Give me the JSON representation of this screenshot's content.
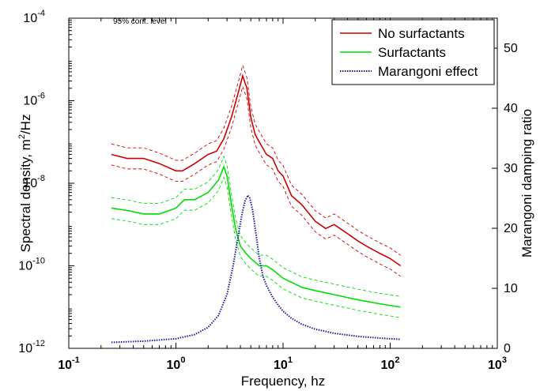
{
  "chart_data": {
    "type": "line",
    "title": "",
    "annotation": "95% conf. level",
    "xlabel": "Frequency, hz",
    "ylabel_left": "Spectral density, m",
    "ylabel_left_sup": "2",
    "ylabel_left_tail": "/Hz",
    "ylabel_right": "Marangoni damping ratio",
    "xscale": "log",
    "yscale_left": "log",
    "xlim": [
      0.1,
      1000
    ],
    "ylim_left": [
      1e-12,
      0.0001
    ],
    "ylim_right": [
      0,
      55
    ],
    "x_ticks": [
      {
        "value": 0.1,
        "base": "10",
        "exp": "-1"
      },
      {
        "value": 1,
        "base": "10",
        "exp": "0"
      },
      {
        "value": 10,
        "base": "10",
        "exp": "1"
      },
      {
        "value": 100,
        "base": "10",
        "exp": "2"
      },
      {
        "value": 1000,
        "base": "10",
        "exp": "3"
      }
    ],
    "y_left_ticks": [
      {
        "value": 1e-12,
        "base": "10",
        "exp": "-12"
      },
      {
        "value": 1e-10,
        "base": "10",
        "exp": "-10"
      },
      {
        "value": 1e-08,
        "base": "10",
        "exp": "-8"
      },
      {
        "value": 1e-06,
        "base": "10",
        "exp": "-6"
      },
      {
        "value": 0.0001,
        "base": "10",
        "exp": "-4"
      }
    ],
    "y_right_ticks": [
      "0",
      "10",
      "20",
      "30",
      "40",
      "50"
    ],
    "legend_position": "top-right",
    "series": [
      {
        "name": "No surfactants",
        "axis": "left",
        "color": "#cc0000",
        "style": "solid",
        "has_ci": true,
        "x": [
          0.25,
          0.35,
          0.5,
          0.7,
          1.0,
          1.15,
          1.5,
          2.0,
          2.4,
          2.8,
          3.3,
          3.8,
          4.2,
          4.6,
          5.0,
          5.5,
          6.0,
          7.0,
          8.0,
          9.0,
          10,
          12,
          15,
          20,
          25,
          30,
          40,
          50,
          60,
          80,
          100,
          125
        ],
        "y": [
          5e-08,
          4e-08,
          4e-08,
          3e-08,
          2e-08,
          2e-08,
          3e-08,
          5e-08,
          6e-08,
          1.2e-07,
          4e-07,
          1.5e-06,
          4e-06,
          2e-06,
          4e-07,
          1.5e-07,
          1e-07,
          5e-08,
          4e-08,
          2e-08,
          1.5e-08,
          5e-09,
          3e-09,
          1.2e-09,
          8e-10,
          1e-09,
          6e-10,
          4e-10,
          3e-10,
          2e-10,
          1.5e-10,
          1e-10
        ],
        "ci_factor": 1.8
      },
      {
        "name": "Surfactants",
        "axis": "left",
        "color": "#00dd00",
        "style": "solid",
        "has_ci": true,
        "x": [
          0.25,
          0.35,
          0.5,
          0.7,
          1.0,
          1.2,
          1.5,
          2.0,
          2.5,
          2.8,
          3.0,
          3.3,
          3.6,
          4.0,
          4.5,
          5.0,
          6.0,
          7.0,
          8.0,
          10,
          15,
          20,
          30,
          50,
          80,
          125
        ],
        "y": [
          2.5e-09,
          2.2e-09,
          1.8e-09,
          1.8e-09,
          2.5e-09,
          4e-09,
          4e-09,
          6e-09,
          1.2e-08,
          2.5e-08,
          1.5e-08,
          3e-09,
          8e-10,
          3e-10,
          2e-10,
          1.5e-10,
          1e-10,
          1e-10,
          8e-11,
          5e-11,
          3e-11,
          2.5e-11,
          2e-11,
          1.5e-11,
          1.2e-11,
          1e-11
        ],
        "ci_factor": 1.8
      },
      {
        "name": "Marangoni effect",
        "axis": "right",
        "color": "#1a1aa0",
        "style": "dotted",
        "has_ci": false,
        "x": [
          0.25,
          0.5,
          1.0,
          1.5,
          2.0,
          2.5,
          3.0,
          3.4,
          3.8,
          4.1,
          4.4,
          4.7,
          4.9,
          5.2,
          5.6,
          6.0,
          6.5,
          7.0,
          8.0,
          9.0,
          10,
          12,
          15,
          20,
          30,
          50,
          80,
          125
        ],
        "y": [
          1,
          1.2,
          1.6,
          2.3,
          3.5,
          5.5,
          9,
          13.5,
          18.5,
          22,
          24.5,
          25.5,
          25,
          23,
          19,
          15,
          12,
          10.5,
          8.5,
          7.2,
          6.2,
          5,
          4,
          3.2,
          2.5,
          2,
          1.7,
          1.5
        ]
      }
    ]
  }
}
